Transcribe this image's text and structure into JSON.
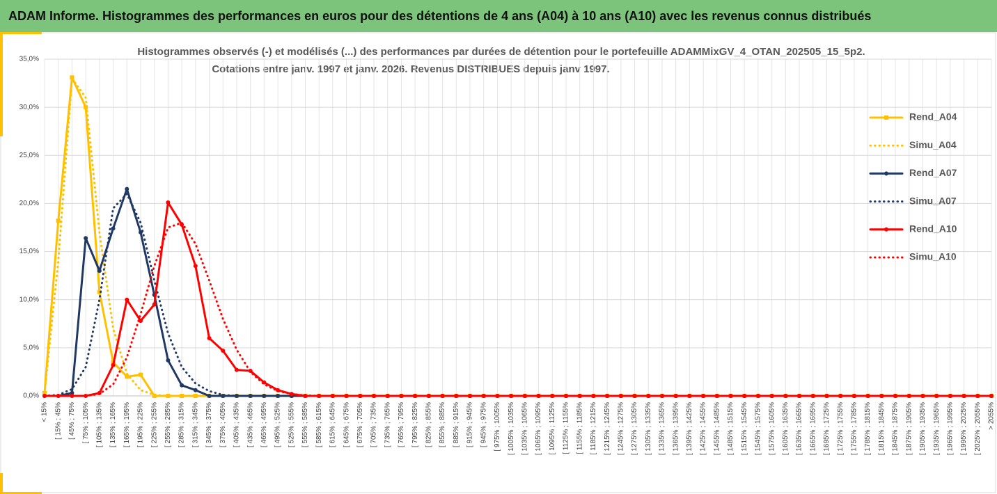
{
  "header": {
    "title": "ADAM Informe. Histogrammes des performances en euros pour des détentions de 4 ans (A04) à 10 ans (A10) avec les revenus connus distribués"
  },
  "chart_data": {
    "type": "line",
    "title": "Histogrammes observés (-) et modélisés (...) des performances par durées de détention pour  le portefeuille ADAMMixGV_4_OTAN_202505_15_5p2.",
    "subtitle": "Cotations  entre  janv. 1997 et janv. 2026. Revenus DISTRIBUES depuis janv 1997.",
    "categories": [
      "< 15%",
      "[ 15% ; 45%",
      "[ 45% ; 75%",
      "[ 75% ; 105%",
      "[ 105% ; 135%",
      "[ 135% ; 165%",
      "[ 165% ; 195%",
      "[ 195% ; 225%",
      "[ 225% ; 255%",
      "[ 255% ; 285%",
      "[ 285% ; 315%",
      "[ 315% ; 345%",
      "[ 345% ; 375%",
      "[ 375% ; 405%",
      "[ 405% ; 435%",
      "[ 435% ; 465%",
      "[ 465% ; 495%",
      "[ 495% ; 525%",
      "[ 525% ; 555%",
      "[ 555% ; 585%",
      "[ 585% ; 615%",
      "[ 615% ; 645%",
      "[ 645% ; 675%",
      "[ 675% ; 705%",
      "[ 705% ; 735%",
      "[ 735% ; 765%",
      "[ 765% ; 795%",
      "[ 795% ; 825%",
      "[ 825% ; 855%",
      "[ 855% ; 885%",
      "[ 885% ; 915%",
      "[ 915% ; 945%",
      "[ 945% ; 975%",
      "[ 975% ; 1005%",
      "[ 1005% ; 1035%",
      "[ 1035% ; 1065%",
      "[ 1065% ; 1095%",
      "[ 1095% ; 1125%",
      "[ 1125% ; 1155%",
      "[ 1155% ; 1185%",
      "[ 1185% ; 1215%",
      "[ 1215% ; 1245%",
      "[ 1245% ; 1275%",
      "[ 1275% ; 1305%",
      "[ 1305% ; 1335%",
      "[ 1335% ; 1365%",
      "[ 1365% ; 1395%",
      "[ 1395% ; 1425%",
      "[ 1425% ; 1455%",
      "[ 1455% ; 1485%",
      "[ 1485% ; 1515%",
      "[ 1515% ; 1545%",
      "[ 1545% ; 1575%",
      "[ 1575% ; 1605%",
      "[ 1605% ; 1635%",
      "[ 1635% ; 1665%",
      "[ 1665% ; 1695%",
      "[ 1695% ; 1725%",
      "[ 1725% ; 1755%",
      "[ 1755% ; 1785%",
      "[ 1785% ; 1815%",
      "[ 1815% ; 1845%",
      "[ 1845% ; 1875%",
      "[ 1875% ; 1905%",
      "[ 1905% ; 1935%",
      "[ 1935% ; 1965%",
      "[ 1965% ; 1995%",
      "[ 1995% ; 2025%",
      "[ 2025% ; 2055%",
      "> 2055%"
    ],
    "series": [
      {
        "name": "Rend_A04",
        "color": "#ffc000",
        "style": "solid",
        "marker": "square",
        "values": [
          0.3,
          18.2,
          33.1,
          30.0,
          10.8,
          3.5,
          2.0,
          2.2,
          0,
          0,
          0,
          0,
          0,
          0,
          0,
          0,
          0,
          0,
          0,
          0,
          0,
          0,
          0,
          0,
          0,
          0,
          0,
          0,
          0,
          0,
          0,
          0,
          0,
          0,
          0,
          0,
          0,
          0,
          0,
          0,
          0,
          0,
          0,
          0,
          0,
          0,
          0,
          0,
          0,
          0,
          0,
          0,
          0,
          0,
          0,
          0,
          0,
          0,
          0,
          0,
          0,
          0,
          0,
          0,
          0,
          0,
          0,
          0,
          0,
          0
        ]
      },
      {
        "name": "Simu_A04",
        "color": "#ffc000",
        "style": "dotted",
        "values": [
          0.3,
          14,
          33,
          31,
          17,
          7,
          2.3,
          0.6,
          0.1,
          0,
          0,
          0,
          0,
          0,
          0,
          0,
          0,
          0,
          0,
          0,
          0,
          0,
          0,
          0,
          0,
          0,
          0,
          0,
          0,
          0,
          0,
          0,
          0,
          0,
          0,
          0,
          0,
          0,
          0,
          0,
          0,
          0,
          0,
          0,
          0,
          0,
          0,
          0,
          0,
          0,
          0,
          0,
          0,
          0,
          0,
          0,
          0,
          0,
          0,
          0,
          0,
          0,
          0,
          0,
          0,
          0,
          0,
          0,
          0,
          0
        ]
      },
      {
        "name": "Rend_A07",
        "color": "#1f3864",
        "style": "solid",
        "marker": "circle",
        "values": [
          0,
          0,
          0.3,
          16.4,
          13.0,
          17.4,
          21.5,
          17.0,
          10.5,
          3.7,
          1.1,
          0.6,
          0,
          0,
          0,
          0,
          0,
          0,
          0,
          0,
          0,
          0,
          0,
          0,
          0,
          0,
          0,
          0,
          0,
          0,
          0,
          0,
          0,
          0,
          0,
          0,
          0,
          0,
          0,
          0,
          0,
          0,
          0,
          0,
          0,
          0,
          0,
          0,
          0,
          0,
          0,
          0,
          0,
          0,
          0,
          0,
          0,
          0,
          0,
          0,
          0,
          0,
          0,
          0,
          0,
          0,
          0,
          0,
          0,
          0
        ]
      },
      {
        "name": "Simu_A07",
        "color": "#1f3864",
        "style": "dotted",
        "values": [
          0,
          0.1,
          0.7,
          3,
          10,
          19.5,
          21,
          18,
          12,
          6.5,
          3,
          1.3,
          0.5,
          0.1,
          0,
          0,
          0,
          0,
          0,
          0,
          0,
          0,
          0,
          0,
          0,
          0,
          0,
          0,
          0,
          0,
          0,
          0,
          0,
          0,
          0,
          0,
          0,
          0,
          0,
          0,
          0,
          0,
          0,
          0,
          0,
          0,
          0,
          0,
          0,
          0,
          0,
          0,
          0,
          0,
          0,
          0,
          0,
          0,
          0,
          0,
          0,
          0,
          0,
          0,
          0,
          0,
          0,
          0,
          0,
          0
        ]
      },
      {
        "name": "Rend_A10",
        "color": "#ff0000",
        "style": "solid",
        "marker": "circle",
        "values": [
          0,
          0,
          0,
          0,
          0.3,
          3.2,
          10.0,
          7.8,
          9.5,
          20.1,
          17.8,
          13.5,
          6.0,
          4.7,
          2.7,
          2.6,
          1.4,
          0.6,
          0.2,
          0,
          0,
          0,
          0,
          0,
          0,
          0,
          0,
          0,
          0,
          0,
          0,
          0,
          0,
          0,
          0,
          0,
          0,
          0,
          0,
          0,
          0,
          0,
          0,
          0,
          0,
          0,
          0,
          0,
          0,
          0,
          0,
          0,
          0,
          0,
          0,
          0,
          0,
          0,
          0,
          0,
          0,
          0,
          0,
          0,
          0,
          0,
          0,
          0,
          0,
          0
        ]
      },
      {
        "name": "Simu_A10",
        "color": "#ff0000",
        "style": "dotted",
        "values": [
          0,
          0,
          0,
          0,
          0.2,
          1.2,
          4,
          8.5,
          13.5,
          17.5,
          18,
          15.8,
          12,
          8,
          4.8,
          2.5,
          1.2,
          0.5,
          0.2,
          0.05,
          0,
          0,
          0,
          0,
          0,
          0,
          0,
          0,
          0,
          0,
          0,
          0,
          0,
          0,
          0,
          0,
          0,
          0,
          0,
          0,
          0,
          0,
          0,
          0,
          0,
          0,
          0,
          0,
          0,
          0,
          0,
          0,
          0,
          0,
          0,
          0,
          0,
          0,
          0,
          0,
          0,
          0,
          0,
          0,
          0,
          0,
          0,
          0,
          0,
          0
        ]
      }
    ],
    "ylim": [
      0,
      35
    ],
    "yticks": [
      {
        "value": 0,
        "label": "0,0%"
      },
      {
        "value": 5,
        "label": "5,0%"
      },
      {
        "value": 10,
        "label": "10,0%"
      },
      {
        "value": 15,
        "label": "15,0%"
      },
      {
        "value": 20,
        "label": "20,0%"
      },
      {
        "value": 25,
        "label": "25,0%"
      },
      {
        "value": 30,
        "label": "30,0%"
      },
      {
        "value": 35,
        "label": "35,0%"
      }
    ],
    "grid": true,
    "legend": "right"
  }
}
